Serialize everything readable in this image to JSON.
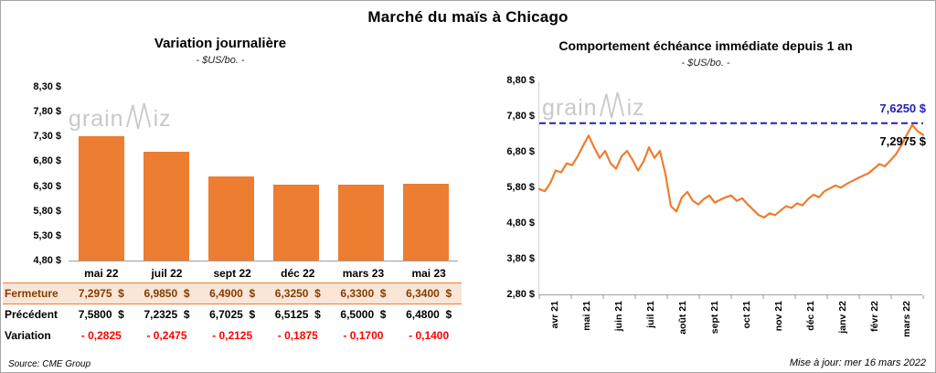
{
  "page": {
    "title": "Marché du maïs à Chicago",
    "source": "Source: CME Group",
    "updated": "Mise à jour: mer 16 mars 2022",
    "watermark": {
      "part1": "grain",
      "part2": "iz"
    }
  },
  "chart_data": [
    {
      "type": "bar",
      "title": "Variation journalière",
      "subtitle": "- $US/bo. -",
      "categories": [
        "mai 22",
        "juil 22",
        "sept 22",
        "déc 22",
        "mars 23",
        "mai 23"
      ],
      "values": [
        7.2975,
        6.985,
        6.49,
        6.325,
        6.33,
        6.34
      ],
      "ylim": [
        4.8,
        8.3
      ],
      "yticks": [
        "8,30 $",
        "7,80 $",
        "7,30 $",
        "6,80 $",
        "6,30 $",
        "5,80 $",
        "5,30 $",
        "4,80 $"
      ],
      "bar_color": "#ED7D31",
      "grid": false,
      "table": {
        "rows": [
          {
            "label": "Fermeture",
            "values": [
              "7,2975  $",
              "6,9850  $",
              "6,4900  $",
              "6,3250  $",
              "6,3300  $",
              "6,3400  $"
            ]
          },
          {
            "label": "Précédent",
            "values": [
              "7,5800  $",
              "7,2325  $",
              "6,7025  $",
              "6,5125  $",
              "6,5000  $",
              "6,4800  $"
            ]
          },
          {
            "label": "Variation",
            "values": [
              "- 0,2825",
              "- 0,2475",
              "- 0,2125",
              "- 0,1875",
              "- 0,1700",
              "- 0,1400"
            ]
          }
        ]
      }
    },
    {
      "type": "line",
      "title": "Comportement échéance immédiate depuis 1 an",
      "subtitle": "- $US/bo. -",
      "x_labels": [
        "avr 21",
        "mai 21",
        "juin 21",
        "juil 21",
        "août 21",
        "sept 21",
        "oct 21",
        "nov 21",
        "déc 21",
        "janv 22",
        "févr 22",
        "mars 22"
      ],
      "ylim": [
        2.8,
        8.8
      ],
      "yticks": [
        "8,80 $",
        "7,80 $",
        "6,80 $",
        "5,80 $",
        "4,80 $",
        "3,80 $",
        "2,80 $"
      ],
      "line_color": "#ED7D31",
      "grid": false,
      "reference_line": {
        "value": 7.625,
        "label": "7,6250 $",
        "color": "#2222B0"
      },
      "last_label": "7,2975 $",
      "values": [
        5.78,
        5.72,
        5.95,
        6.3,
        6.25,
        6.5,
        6.45,
        6.7,
        7.0,
        7.28,
        6.95,
        6.65,
        6.85,
        6.5,
        6.35,
        6.7,
        6.85,
        6.6,
        6.3,
        6.55,
        6.95,
        6.65,
        6.85,
        6.2,
        5.3,
        5.15,
        5.55,
        5.7,
        5.45,
        5.35,
        5.5,
        5.6,
        5.4,
        5.48,
        5.55,
        5.6,
        5.45,
        5.52,
        5.35,
        5.2,
        5.05,
        4.98,
        5.1,
        5.05,
        5.18,
        5.3,
        5.25,
        5.38,
        5.32,
        5.5,
        5.62,
        5.55,
        5.72,
        5.8,
        5.88,
        5.82,
        5.92,
        6.0,
        6.08,
        6.15,
        6.22,
        6.35,
        6.48,
        6.42,
        6.58,
        6.75,
        7.0,
        7.3,
        7.58,
        7.4,
        7.2975
      ]
    }
  ]
}
